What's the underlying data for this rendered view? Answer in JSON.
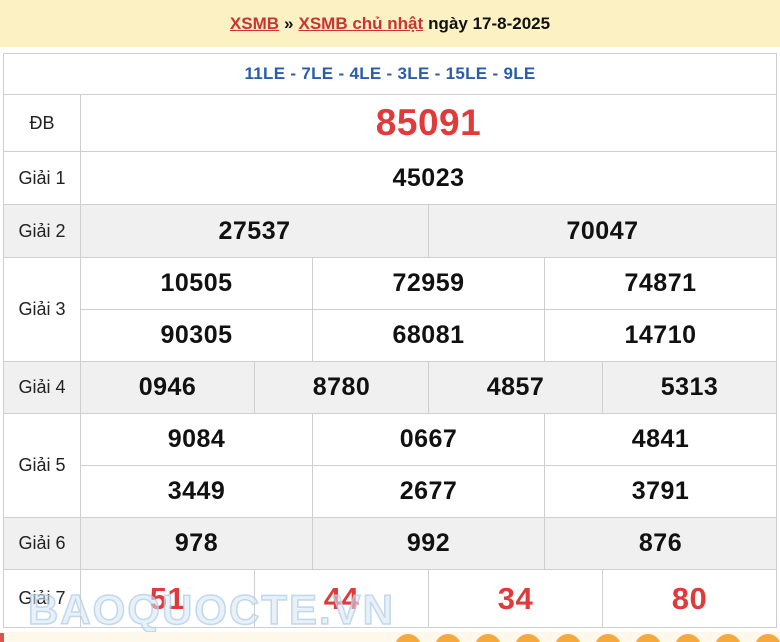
{
  "header": {
    "link1": "XSMB",
    "separator": "»",
    "link2": "XSMB chủ nhật",
    "date_text": "ngày 17-8-2025"
  },
  "subtitle": "11LE - 7LE - 4LE - 3LE - 15LE - 9LE",
  "results": {
    "rows": [
      {
        "label": "ĐB",
        "style": "special",
        "shaded": false,
        "numbers": [
          [
            "85091"
          ]
        ]
      },
      {
        "label": "Giải 1",
        "style": "",
        "shaded": false,
        "numbers": [
          [
            "45023"
          ]
        ]
      },
      {
        "label": "Giải 2",
        "style": "",
        "shaded": true,
        "numbers": [
          [
            "27537",
            "70047"
          ]
        ]
      },
      {
        "label": "Giải 3",
        "style": "",
        "shaded": false,
        "numbers": [
          [
            "10505",
            "72959",
            "74871"
          ],
          [
            "90305",
            "68081",
            "14710"
          ]
        ]
      },
      {
        "label": "Giải 4",
        "style": "",
        "shaded": true,
        "numbers": [
          [
            "0946",
            "8780",
            "4857",
            "5313"
          ]
        ]
      },
      {
        "label": "Giải 5",
        "style": "",
        "shaded": false,
        "numbers": [
          [
            "9084",
            "0667",
            "4841"
          ],
          [
            "3449",
            "2677",
            "3791"
          ]
        ]
      },
      {
        "label": "Giải 6",
        "style": "",
        "shaded": true,
        "numbers": [
          [
            "978",
            "992",
            "876"
          ]
        ]
      },
      {
        "label": "Giải 7",
        "style": "red",
        "shaded": false,
        "numbers": [
          [
            "51",
            "44",
            "34",
            "80"
          ]
        ]
      }
    ]
  },
  "watermark": "BAOQUOCTE.VN",
  "footer": {
    "ball_icon": "lottery-ball-icon",
    "ball_count": 10
  },
  "colors": {
    "banner_yellow": "#fbf1c3",
    "link_red": "#cb3232",
    "subtitle_blue": "#2a5caa",
    "number_red": "#e03a3a",
    "row_alt_gray": "#f0f0f0",
    "border_gray": "#cfcfcf",
    "strip_cream": "#fdf8ea",
    "ball_orange": "#f5a93f"
  }
}
